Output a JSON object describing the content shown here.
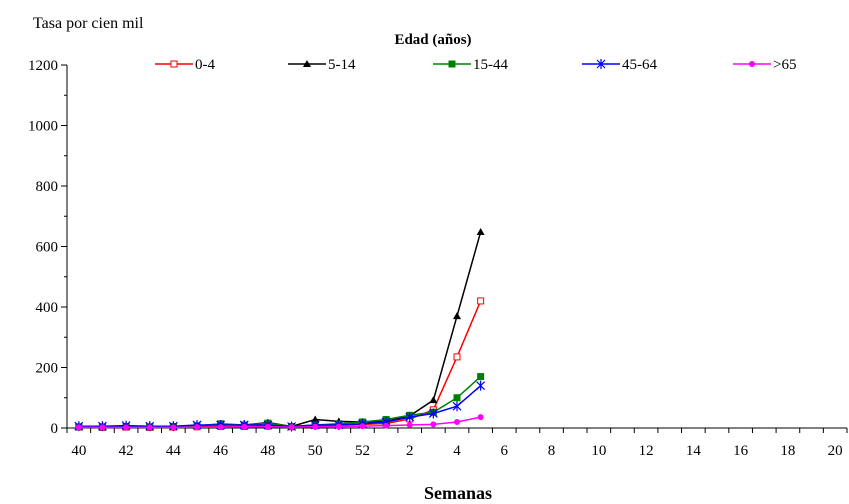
{
  "chart_data": {
    "type": "line",
    "title": "",
    "ylabel": "Tasa por cien mil",
    "xlabel": "Semanas",
    "legend_title": "Edad (años)",
    "legend_position": "top",
    "grid": false,
    "ylim": [
      0,
      1200
    ],
    "y_ticks": [
      "0",
      "200",
      "400",
      "600",
      "800",
      "1000",
      "1200"
    ],
    "weeks": [
      "40",
      "41",
      "42",
      "43",
      "44",
      "45",
      "46",
      "47",
      "48",
      "49",
      "50",
      "51",
      "52",
      "1",
      "2",
      "3",
      "4",
      "5",
      "6",
      "7",
      "8",
      "9",
      "10",
      "11",
      "12",
      "13",
      "14",
      "15",
      "16",
      "17",
      "18",
      "19",
      "20"
    ],
    "x_tick_labels": [
      "40",
      "42",
      "44",
      "46",
      "48",
      "50",
      "52",
      "2",
      "4",
      "6",
      "8",
      "10",
      "12",
      "14",
      "16",
      "18",
      "20"
    ],
    "series": [
      {
        "name": "0-4",
        "color": "#ff0000",
        "marker": "open-square",
        "values": [
          3,
          2,
          3,
          2,
          3,
          4,
          5,
          5,
          6,
          4,
          8,
          10,
          12,
          15,
          30,
          60,
          235,
          420
        ]
      },
      {
        "name": "5-14",
        "color": "#000000",
        "marker": "filled-triangle",
        "values": [
          5,
          4,
          5,
          4,
          5,
          8,
          12,
          10,
          18,
          5,
          28,
          22,
          20,
          22,
          40,
          92,
          370,
          648
        ]
      },
      {
        "name": "15-44",
        "color": "#008000",
        "marker": "filled-square",
        "values": [
          4,
          4,
          5,
          4,
          5,
          7,
          14,
          10,
          16,
          5,
          10,
          14,
          20,
          28,
          42,
          52,
          100,
          170
        ]
      },
      {
        "name": "45-64",
        "color": "#0000ff",
        "marker": "asterisk",
        "values": [
          6,
          6,
          8,
          6,
          6,
          10,
          10,
          10,
          10,
          5,
          10,
          10,
          14,
          20,
          36,
          48,
          72,
          140
        ]
      },
      {
        "name": ">65",
        "color": "#ff00ff",
        "marker": "filled-circle",
        "values": [
          2,
          2,
          2,
          2,
          2,
          3,
          3,
          4,
          4,
          3,
          4,
          5,
          6,
          8,
          10,
          12,
          20,
          36
        ]
      }
    ]
  }
}
